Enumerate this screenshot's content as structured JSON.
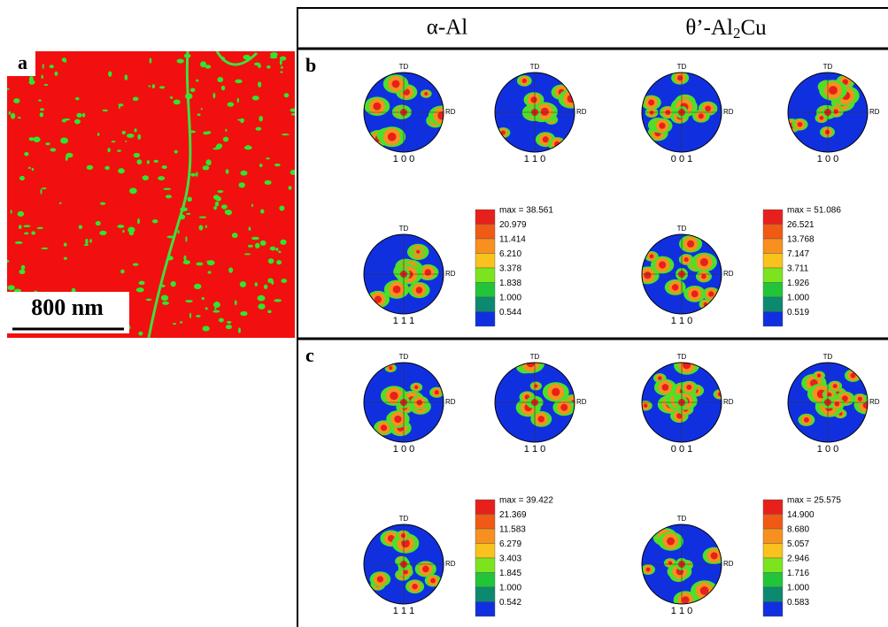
{
  "panel_a": {
    "label": "a",
    "scale_bar": "800 nm"
  },
  "headers": [
    {
      "text": "α-Al"
    },
    {
      "text": "θ’-Al",
      "sub": "2",
      "suffix": "Cu"
    }
  ],
  "panels": [
    {
      "label": "b",
      "figures": [
        {
          "top": "TD",
          "right": "RD",
          "label": "1 0 0"
        },
        {
          "top": "TD",
          "right": "RD",
          "label": "1 1 0"
        },
        {
          "top": "TD",
          "right": "RD",
          "label": "0 0 1"
        },
        {
          "top": "TD",
          "right": "RD",
          "label": "1 0 0"
        },
        {
          "top": "TD",
          "right": "RD",
          "label": "1 1 1"
        },
        {
          "top": "TD",
          "right": "RD",
          "label": "1 1 0"
        }
      ],
      "legends": [
        {
          "max": "max = 38.561",
          "levels": [
            "20.979",
            "11.414",
            "6.210",
            "3.378",
            "1.838",
            "1.000",
            "0.544"
          ]
        },
        {
          "max": "max = 51.086",
          "levels": [
            "26.521",
            "13.768",
            "7.147",
            "3.711",
            "1.926",
            "1.000",
            "0.519"
          ]
        }
      ]
    },
    {
      "label": "c",
      "figures": [
        {
          "top": "TD",
          "right": "RD",
          "label": "1 0 0"
        },
        {
          "top": "TD",
          "right": "RD",
          "label": "1 1 0"
        },
        {
          "top": "TD",
          "right": "RD",
          "label": "0 0 1"
        },
        {
          "top": "TD",
          "right": "RD",
          "label": "1 0 0"
        },
        {
          "top": "TD",
          "right": "RD",
          "label": "1 1 1"
        },
        {
          "top": "TD",
          "right": "RD",
          "label": "1 1 0"
        }
      ],
      "legends": [
        {
          "max": "max = 39.422",
          "levels": [
            "21.369",
            "11.583",
            "6.279",
            "3.403",
            "1.845",
            "1.000",
            "0.542"
          ]
        },
        {
          "max": "max = 25.575",
          "levels": [
            "14.900",
            "8.680",
            "5.057",
            "2.946",
            "1.716",
            "1.000",
            "0.583"
          ]
        }
      ]
    }
  ]
}
